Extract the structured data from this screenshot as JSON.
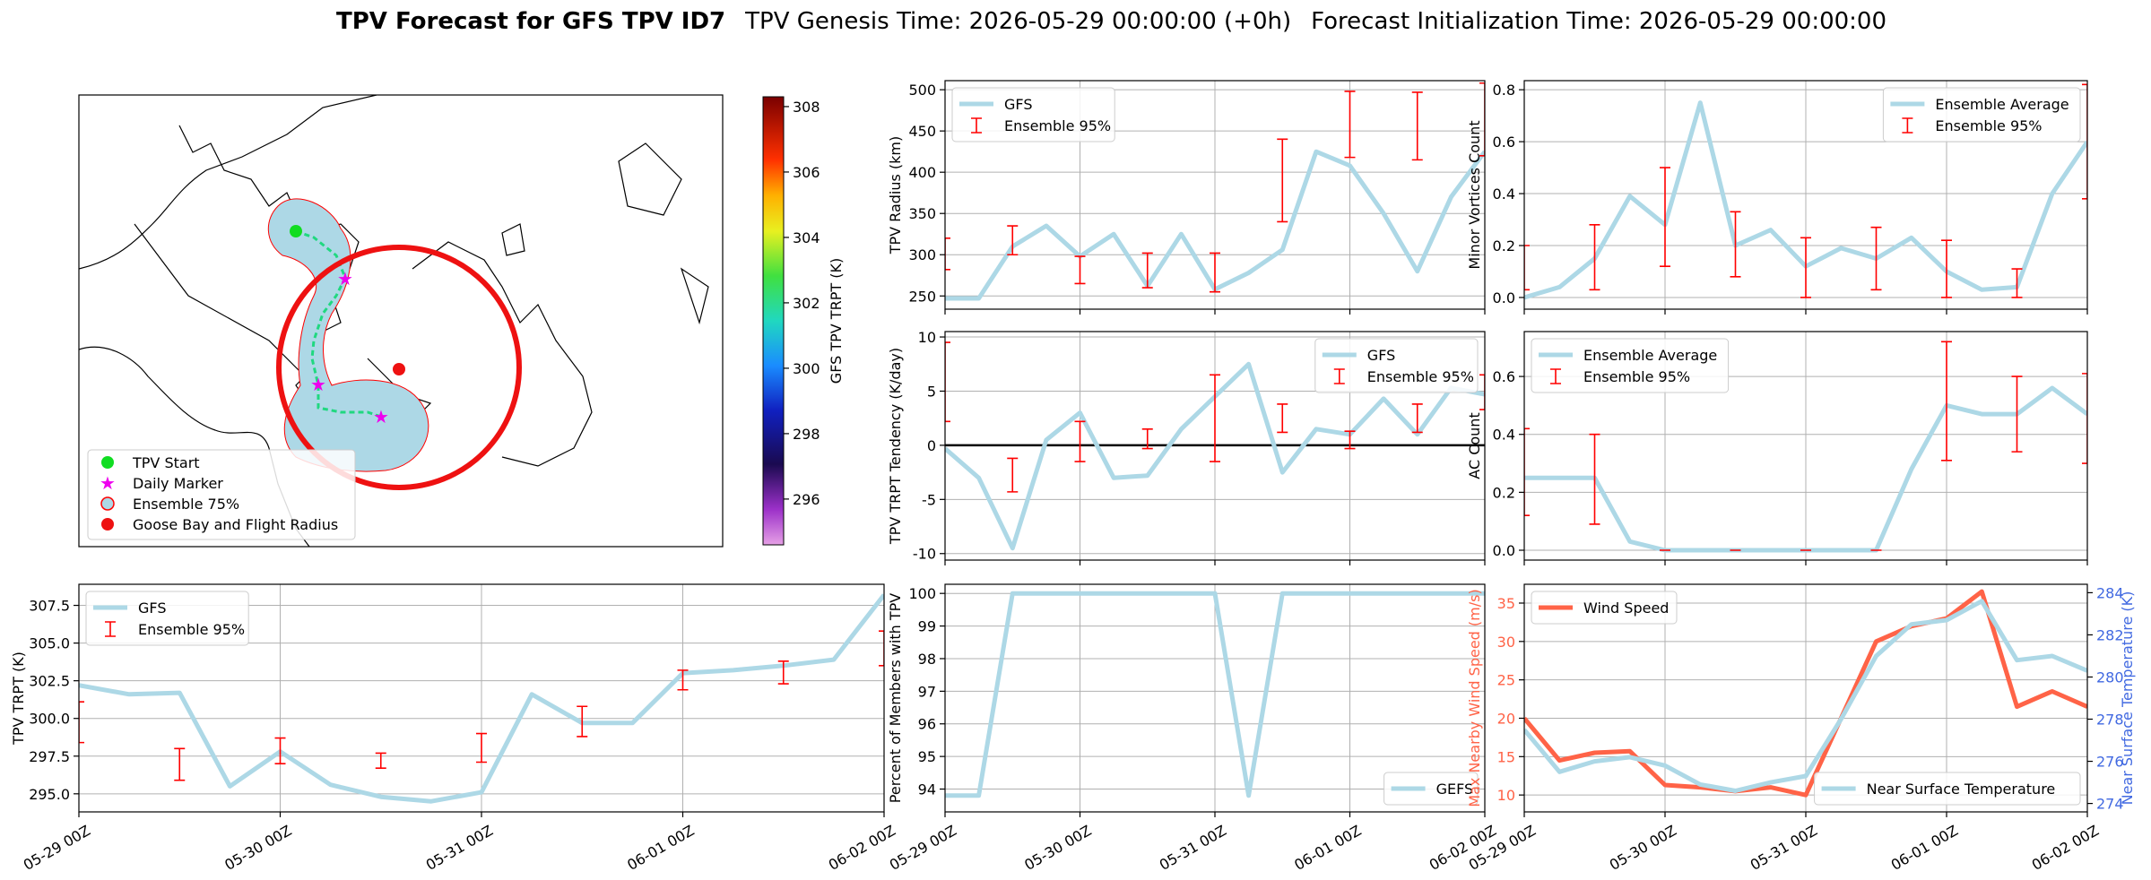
{
  "figure": {
    "title": "TPV Forecast for GFS TPV ID7",
    "genesis": "TPV Genesis Time: 2026-05-29 00:00:00 (+0h)",
    "init": "Forecast Initialization Time: 2026-05-29 00:00:00"
  },
  "chart_data": [
    {
      "type": "map",
      "legend": [
        "TPV Start",
        "Daily Marker",
        "Ensemble 75%",
        "Goose Bay and Flight Radius"
      ],
      "colorbar": {
        "label": "GFS TPV TRPT (K)",
        "lim": [
          294.6,
          308.3
        ],
        "ticks": [
          296,
          298,
          300,
          302,
          304,
          306,
          308
        ]
      }
    },
    {
      "type": "line",
      "ylabel": "TPV Radius (km)",
      "grid": true,
      "legend": "upper left",
      "xlim": [
        0,
        96
      ],
      "xticks": [
        0,
        24,
        48,
        72,
        96
      ],
      "ylim": [
        234,
        511
      ],
      "yticks": [
        250,
        300,
        350,
        400,
        450,
        500
      ],
      "x": [
        0,
        6,
        12,
        18,
        24,
        30,
        36,
        42,
        48,
        54,
        60,
        66,
        72,
        78,
        84,
        90,
        96
      ],
      "series": [
        {
          "name": "GFS",
          "color": "#add8e6",
          "values": [
            247,
            247,
            310,
            335,
            298,
            325,
            262,
            325,
            258,
            278,
            306,
            425,
            408,
            350,
            280,
            370,
            425
          ]
        }
      ],
      "errorbars": {
        "name": "Ensemble 95%",
        "color": "#ff0000",
        "x": [
          0,
          12,
          24,
          36,
          48,
          60,
          72,
          84,
          96
        ],
        "lower": [
          282,
          300,
          265,
          260,
          255,
          340,
          418,
          415,
          420
        ],
        "upper": [
          320,
          335,
          298,
          302,
          302,
          440,
          498,
          497,
          508
        ]
      }
    },
    {
      "type": "line",
      "ylabel": "TPV TRPT Tendency (K/day)",
      "grid": true,
      "legend": "upper right",
      "hline": 0,
      "xlim": [
        0,
        96
      ],
      "xticks": [
        0,
        24,
        48,
        72,
        96
      ],
      "ylim": [
        -10.6,
        10.5
      ],
      "yticks": [
        -10,
        -5,
        0,
        5,
        10
      ],
      "x": [
        0,
        6,
        12,
        18,
        24,
        30,
        36,
        42,
        48,
        54,
        60,
        66,
        72,
        78,
        84,
        90,
        96
      ],
      "series": [
        {
          "name": "GFS",
          "color": "#add8e6",
          "values": [
            -0.3,
            -3,
            -9.5,
            0.5,
            3,
            -3,
            -2.8,
            1.5,
            4.5,
            7.5,
            -2.5,
            1.5,
            1,
            4.3,
            1,
            5.3,
            4.7
          ]
        }
      ],
      "errorbars": {
        "name": "Ensemble 95%",
        "color": "#ff0000",
        "x": [
          0,
          12,
          24,
          36,
          48,
          60,
          72,
          84,
          96
        ],
        "lower": [
          2.2,
          -4.3,
          -1.5,
          -0.3,
          -1.5,
          1.2,
          -0.3,
          1.2,
          3.3
        ],
        "upper": [
          9.5,
          -1.2,
          2.2,
          1.5,
          6.5,
          3.8,
          1.3,
          3.8,
          6.5
        ]
      }
    },
    {
      "type": "line",
      "ylabel": "Minor Vortices Count",
      "grid": true,
      "legend": "upper right",
      "xlim": [
        0,
        96
      ],
      "xticks": [
        0,
        24,
        48,
        72,
        96
      ],
      "ylim": [
        -0.045,
        0.835
      ],
      "yticks": [
        {
          "value": 0,
          "label": "0.0"
        },
        0.2,
        0.4,
        0.6,
        0.8
      ],
      "x": [
        0,
        6,
        12,
        18,
        24,
        30,
        36,
        42,
        48,
        54,
        60,
        66,
        72,
        78,
        84,
        90,
        96
      ],
      "series": [
        {
          "name": "Ensemble Average",
          "color": "#add8e6",
          "values": [
            0,
            0.04,
            0.15,
            0.39,
            0.28,
            0.75,
            0.2,
            0.26,
            0.12,
            0.19,
            0.15,
            0.23,
            0.1,
            0.03,
            0.04,
            0.4,
            0.6
          ]
        }
      ],
      "errorbars": {
        "name": "Ensemble 95%",
        "color": "#ff0000",
        "x": [
          0,
          12,
          24,
          36,
          48,
          60,
          72,
          84,
          96
        ],
        "lower": [
          0.03,
          0.03,
          0.12,
          0.08,
          0,
          0.03,
          0,
          0,
          0.38
        ],
        "upper": [
          0.2,
          0.28,
          0.5,
          0.33,
          0.23,
          0.27,
          0.22,
          0.11,
          0.82
        ]
      }
    },
    {
      "type": "line",
      "ylabel": "AC Count",
      "grid": true,
      "legend": "upper left",
      "xlim": [
        0,
        96
      ],
      "xticks": [
        0,
        24,
        48,
        72,
        96
      ],
      "ylim": [
        -0.034,
        0.755
      ],
      "yticks": [
        {
          "value": 0,
          "label": "0.0"
        },
        0.2,
        0.4,
        0.6
      ],
      "x": [
        0,
        6,
        12,
        18,
        24,
        30,
        36,
        42,
        48,
        54,
        60,
        66,
        72,
        78,
        84,
        90,
        96
      ],
      "series": [
        {
          "name": "Ensemble Average",
          "color": "#add8e6",
          "values": [
            0.25,
            0.25,
            0.25,
            0.03,
            0,
            0,
            0,
            0,
            0,
            0,
            0,
            0.28,
            0.5,
            0.47,
            0.47,
            0.56,
            0.47
          ]
        }
      ],
      "errorbars": {
        "name": "Ensemble 95%",
        "color": "#ff0000",
        "x": [
          0,
          12,
          24,
          36,
          48,
          60,
          72,
          84,
          96
        ],
        "lower": [
          0.12,
          0.09,
          0,
          0,
          0,
          0,
          0.31,
          0.34,
          0.3
        ],
        "upper": [
          0.42,
          0.4,
          0,
          0,
          0,
          0,
          0.72,
          0.6,
          0.61
        ]
      }
    },
    {
      "type": "line",
      "ylabel": "TPV TRPT (K)",
      "grid": true,
      "legend": "upper left",
      "xlim": [
        0,
        96
      ],
      "xticks": [
        {
          "value": 0,
          "label": "05-29 00Z"
        },
        {
          "value": 24,
          "label": "05-30 00Z"
        },
        {
          "value": 48,
          "label": "05-31 00Z"
        },
        {
          "value": 72,
          "label": "06-01 00Z"
        },
        {
          "value": 96,
          "label": "06-02 00Z"
        }
      ],
      "ylim": [
        293.8,
        308.9
      ],
      "yticks": [
        {
          "value": 295,
          "label": "295.0"
        },
        297.5,
        {
          "value": 300,
          "label": "300.0"
        },
        302.5,
        {
          "value": 305,
          "label": "305.0"
        },
        307.5
      ],
      "x": [
        0,
        6,
        12,
        18,
        24,
        30,
        36,
        42,
        48,
        54,
        60,
        66,
        72,
        78,
        84,
        90,
        96
      ],
      "series": [
        {
          "name": "GFS",
          "color": "#add8e6",
          "values": [
            302.2,
            301.6,
            301.7,
            295.5,
            297.8,
            295.6,
            294.8,
            294.5,
            295.1,
            301.6,
            299.7,
            299.7,
            303.0,
            303.2,
            303.5,
            303.9,
            308.2
          ]
        }
      ],
      "errorbars": {
        "name": "Ensemble 95%",
        "color": "#ff0000",
        "x": [
          0,
          12,
          24,
          36,
          48,
          60,
          72,
          84,
          96
        ],
        "lower": [
          298.4,
          295.9,
          297.0,
          296.7,
          297.1,
          298.8,
          301.9,
          302.3,
          303.5
        ],
        "upper": [
          301.1,
          298.0,
          298.7,
          297.7,
          299.0,
          300.8,
          303.2,
          303.8,
          305.8
        ]
      }
    },
    {
      "type": "line",
      "ylabel": "Percent of Members with TPV",
      "grid": true,
      "legend": "lower right",
      "xlim": [
        0,
        96
      ],
      "xticks": [
        {
          "value": 0,
          "label": "05-29 00Z"
        },
        {
          "value": 24,
          "label": "05-30 00Z"
        },
        {
          "value": 48,
          "label": "05-31 00Z"
        },
        {
          "value": 72,
          "label": "06-01 00Z"
        },
        {
          "value": 96,
          "label": "06-02 00Z"
        }
      ],
      "ylim": [
        93.3,
        100.28
      ],
      "yticks": [
        94,
        95,
        96,
        97,
        98,
        99,
        100
      ],
      "x": [
        0,
        6,
        12,
        18,
        24,
        30,
        36,
        42,
        48,
        54,
        60,
        66,
        72,
        78,
        84,
        90,
        96
      ],
      "series": [
        {
          "name": "GEFS",
          "color": "#add8e6",
          "values": [
            93.8,
            93.8,
            100,
            100,
            100,
            100,
            100,
            100,
            100,
            93.8,
            100,
            100,
            100,
            100,
            100,
            100,
            100
          ]
        }
      ]
    },
    {
      "type": "line",
      "ylabel": "Max Nearby Wind Speed (m/s)",
      "y2label": "Near Surface Temperature (K)",
      "grid": true,
      "legend": "upper left",
      "legend2": "lower right",
      "xlim": [
        0,
        96
      ],
      "xticks": [
        {
          "value": 0,
          "label": "05-29 00Z"
        },
        {
          "value": 24,
          "label": "05-30 00Z"
        },
        {
          "value": 48,
          "label": "05-31 00Z"
        },
        {
          "value": 72,
          "label": "06-01 00Z"
        },
        {
          "value": 96,
          "label": "06-02 00Z"
        }
      ],
      "ylim": [
        7.8,
        37.45
      ],
      "yticks": [
        10,
        15,
        20,
        25,
        30,
        35
      ],
      "ylabel_color": "#ff6347",
      "y2lim": [
        273.6,
        284.4
      ],
      "y2ticks": [
        274,
        276,
        278,
        280,
        282,
        284
      ],
      "y2label_color": "#4169e1",
      "x": [
        0,
        6,
        12,
        18,
        24,
        30,
        36,
        42,
        48,
        54,
        60,
        66,
        72,
        78,
        84,
        90,
        96
      ],
      "series": [
        {
          "name": "Wind Speed",
          "color": "#ff6347",
          "values": [
            20,
            14.5,
            15.5,
            15.7,
            11.3,
            11,
            10.5,
            11,
            10,
            20,
            30,
            32,
            33,
            36.5,
            21.5,
            23.5,
            21.5
          ]
        },
        {
          "name": "Near Surface Temperature",
          "color": "#add8e6",
          "axis": "y2",
          "values": [
            277.5,
            275.5,
            276,
            276.2,
            275.8,
            274.9,
            274.6,
            275,
            275.3,
            278,
            281,
            282.5,
            282.7,
            283.6,
            280.8,
            281,
            280.3
          ]
        }
      ]
    }
  ]
}
